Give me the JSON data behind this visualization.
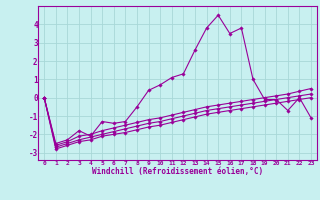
{
  "xlabel": "Windchill (Refroidissement éolien,°C)",
  "bg_color": "#c8f0f0",
  "grid_color": "#a8d8d8",
  "line_color": "#990099",
  "x_range": [
    -0.5,
    23.5
  ],
  "y_range": [
    -3.4,
    5.0
  ],
  "x_ticks": [
    0,
    1,
    2,
    3,
    4,
    5,
    6,
    7,
    8,
    9,
    10,
    11,
    12,
    13,
    14,
    15,
    16,
    17,
    18,
    19,
    20,
    21,
    22,
    23
  ],
  "y_ticks": [
    -3,
    -2,
    -1,
    0,
    1,
    2,
    3,
    4
  ],
  "series": {
    "line1": [
      0,
      -2.5,
      -2.3,
      -1.8,
      -2.1,
      -1.3,
      -1.4,
      -1.3,
      -0.5,
      0.4,
      0.7,
      1.1,
      1.3,
      2.6,
      3.8,
      4.5,
      3.5,
      3.8,
      1.0,
      -0.1,
      -0.1,
      -0.7,
      0.0,
      -1.1
    ],
    "line2": [
      0,
      -2.6,
      -2.4,
      -2.1,
      -2.0,
      -1.8,
      -1.65,
      -1.5,
      -1.35,
      -1.2,
      -1.1,
      -0.95,
      -0.8,
      -0.65,
      -0.5,
      -0.4,
      -0.3,
      -0.2,
      -0.1,
      -0.0,
      0.1,
      0.2,
      0.35,
      0.5
    ],
    "line3": [
      0,
      -2.7,
      -2.5,
      -2.3,
      -2.15,
      -2.0,
      -1.85,
      -1.7,
      -1.55,
      -1.4,
      -1.3,
      -1.15,
      -1.0,
      -0.85,
      -0.7,
      -0.6,
      -0.5,
      -0.4,
      -0.3,
      -0.2,
      -0.1,
      0.0,
      0.1,
      0.2
    ],
    "line4": [
      0,
      -2.8,
      -2.6,
      -2.4,
      -2.3,
      -2.1,
      -2.0,
      -1.9,
      -1.75,
      -1.6,
      -1.5,
      -1.35,
      -1.2,
      -1.05,
      -0.9,
      -0.8,
      -0.7,
      -0.6,
      -0.5,
      -0.4,
      -0.3,
      -0.2,
      -0.1,
      0.0
    ]
  }
}
